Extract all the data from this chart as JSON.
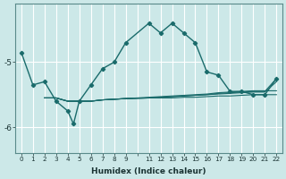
{
  "xlabel": "Humidex (Indice chaleur)",
  "bg_color": "#cce8e8",
  "grid_color": "#ffffff",
  "line_color": "#1a6b6b",
  "xlim": [
    -0.5,
    22.5
  ],
  "ylim": [
    -6.4,
    -4.1
  ],
  "yticks": [
    -6,
    -5
  ],
  "xtick_labels": [
    "0",
    "1",
    "2",
    "3",
    "4",
    "5",
    "6",
    "7",
    "8",
    "9",
    "",
    "11",
    "12",
    "13",
    "14",
    "15",
    "16",
    "17",
    "18",
    "19",
    "20",
    "21",
    "22"
  ],
  "xtick_positions": [
    0,
    1,
    2,
    3,
    4,
    5,
    6,
    7,
    8,
    9,
    10,
    11,
    12,
    13,
    14,
    15,
    16,
    17,
    18,
    19,
    20,
    21,
    22
  ],
  "series": [
    [
      0,
      -4.85
    ],
    [
      1,
      -5.35
    ],
    [
      2,
      -5.3
    ],
    [
      3,
      -5.6
    ],
    [
      4,
      -5.75
    ],
    [
      4.5,
      -5.95
    ],
    [
      5,
      -5.6
    ],
    [
      6,
      -5.35
    ],
    [
      7,
      -5.1
    ],
    [
      8,
      -5.0
    ],
    [
      9,
      -4.7
    ],
    [
      11,
      -4.4
    ],
    [
      12,
      -4.55
    ],
    [
      13,
      -4.4
    ],
    [
      14,
      -4.55
    ],
    [
      15,
      -4.7
    ],
    [
      16,
      -5.15
    ],
    [
      17,
      -5.2
    ],
    [
      18,
      -5.45
    ],
    [
      19,
      -5.45
    ],
    [
      20,
      -5.5
    ],
    [
      21,
      -5.5
    ],
    [
      22,
      -5.25
    ]
  ],
  "flat_series": [
    [
      [
        2,
        -5.55
      ],
      [
        3,
        -5.55
      ],
      [
        4,
        -5.6
      ],
      [
        5,
        -5.6
      ],
      [
        6,
        -5.6
      ],
      [
        7,
        -5.58
      ],
      [
        8,
        -5.57
      ],
      [
        9,
        -5.56
      ],
      [
        11,
        -5.55
      ],
      [
        12,
        -5.55
      ],
      [
        13,
        -5.55
      ],
      [
        14,
        -5.54
      ],
      [
        15,
        -5.54
      ],
      [
        16,
        -5.53
      ],
      [
        17,
        -5.52
      ],
      [
        18,
        -5.52
      ],
      [
        19,
        -5.51
      ],
      [
        20,
        -5.5
      ],
      [
        21,
        -5.5
      ],
      [
        22,
        -5.5
      ]
    ],
    [
      [
        2,
        -5.55
      ],
      [
        3,
        -5.55
      ],
      [
        4,
        -5.6
      ],
      [
        5,
        -5.6
      ],
      [
        6,
        -5.6
      ],
      [
        7,
        -5.58
      ],
      [
        8,
        -5.57
      ],
      [
        9,
        -5.56
      ],
      [
        11,
        -5.55
      ],
      [
        12,
        -5.54
      ],
      [
        13,
        -5.53
      ],
      [
        14,
        -5.52
      ],
      [
        15,
        -5.51
      ],
      [
        16,
        -5.5
      ],
      [
        17,
        -5.49
      ],
      [
        18,
        -5.48
      ],
      [
        19,
        -5.47
      ],
      [
        20,
        -5.46
      ],
      [
        21,
        -5.46
      ],
      [
        22,
        -5.3
      ]
    ],
    [
      [
        2,
        -5.55
      ],
      [
        3,
        -5.55
      ],
      [
        4,
        -5.6
      ],
      [
        5,
        -5.6
      ],
      [
        6,
        -5.6
      ],
      [
        7,
        -5.58
      ],
      [
        8,
        -5.57
      ],
      [
        9,
        -5.56
      ],
      [
        11,
        -5.55
      ],
      [
        12,
        -5.54
      ],
      [
        13,
        -5.53
      ],
      [
        14,
        -5.52
      ],
      [
        15,
        -5.51
      ],
      [
        16,
        -5.5
      ],
      [
        17,
        -5.48
      ],
      [
        18,
        -5.47
      ],
      [
        19,
        -5.46
      ],
      [
        20,
        -5.45
      ],
      [
        21,
        -5.45
      ],
      [
        22,
        -5.25
      ]
    ],
    [
      [
        2,
        -5.55
      ],
      [
        3,
        -5.55
      ],
      [
        4,
        -5.6
      ],
      [
        5,
        -5.6
      ],
      [
        6,
        -5.6
      ],
      [
        7,
        -5.58
      ],
      [
        8,
        -5.57
      ],
      [
        9,
        -5.56
      ],
      [
        11,
        -5.54
      ],
      [
        12,
        -5.53
      ],
      [
        13,
        -5.52
      ],
      [
        14,
        -5.51
      ],
      [
        15,
        -5.5
      ],
      [
        16,
        -5.49
      ],
      [
        17,
        -5.47
      ],
      [
        18,
        -5.46
      ],
      [
        19,
        -5.45
      ],
      [
        20,
        -5.44
      ],
      [
        21,
        -5.44
      ],
      [
        22,
        -5.44
      ]
    ]
  ]
}
